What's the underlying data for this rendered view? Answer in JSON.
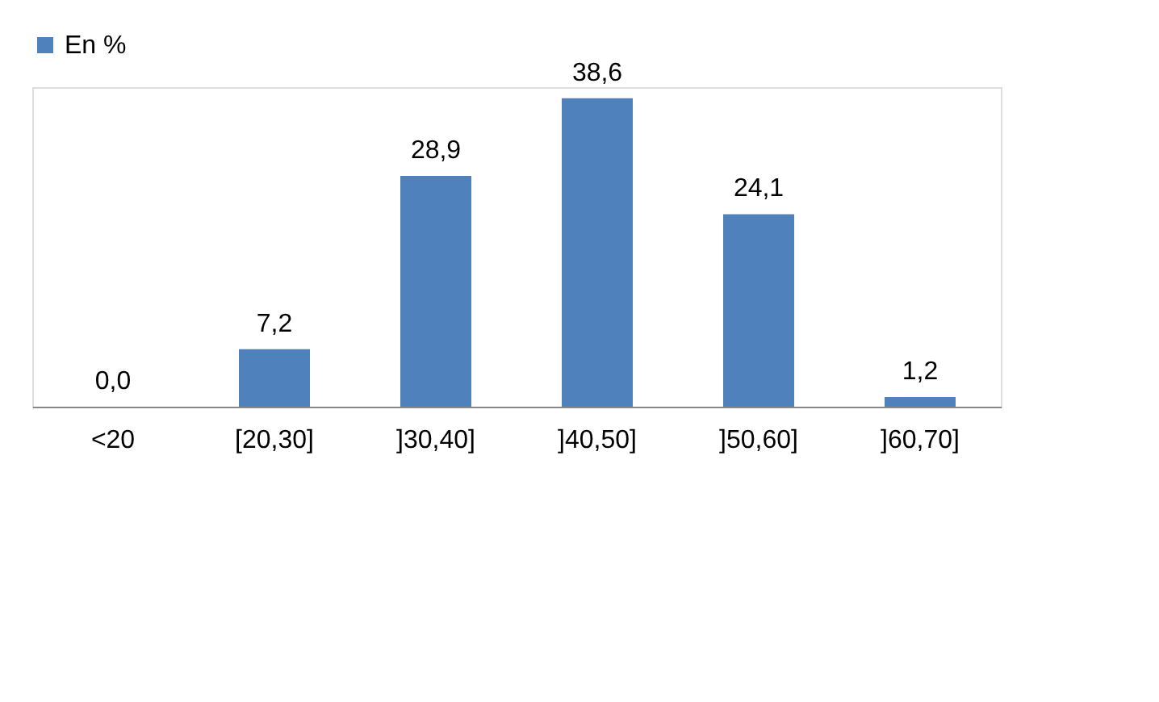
{
  "chart_data": {
    "type": "bar",
    "categories": [
      "<20",
      "[20,30]",
      "]30,40]",
      "]40,50]",
      "]50,60]",
      "]60,70]"
    ],
    "series": [
      {
        "name": "En %",
        "color": "#4f81bd",
        "values": [
          0.0,
          7.2,
          28.9,
          38.6,
          24.1,
          1.2
        ],
        "value_labels": [
          "0,0",
          "7,2",
          "28,9",
          "38,6",
          "24,1",
          "1,2"
        ]
      }
    ],
    "legend": "top",
    "grid": false
  }
}
